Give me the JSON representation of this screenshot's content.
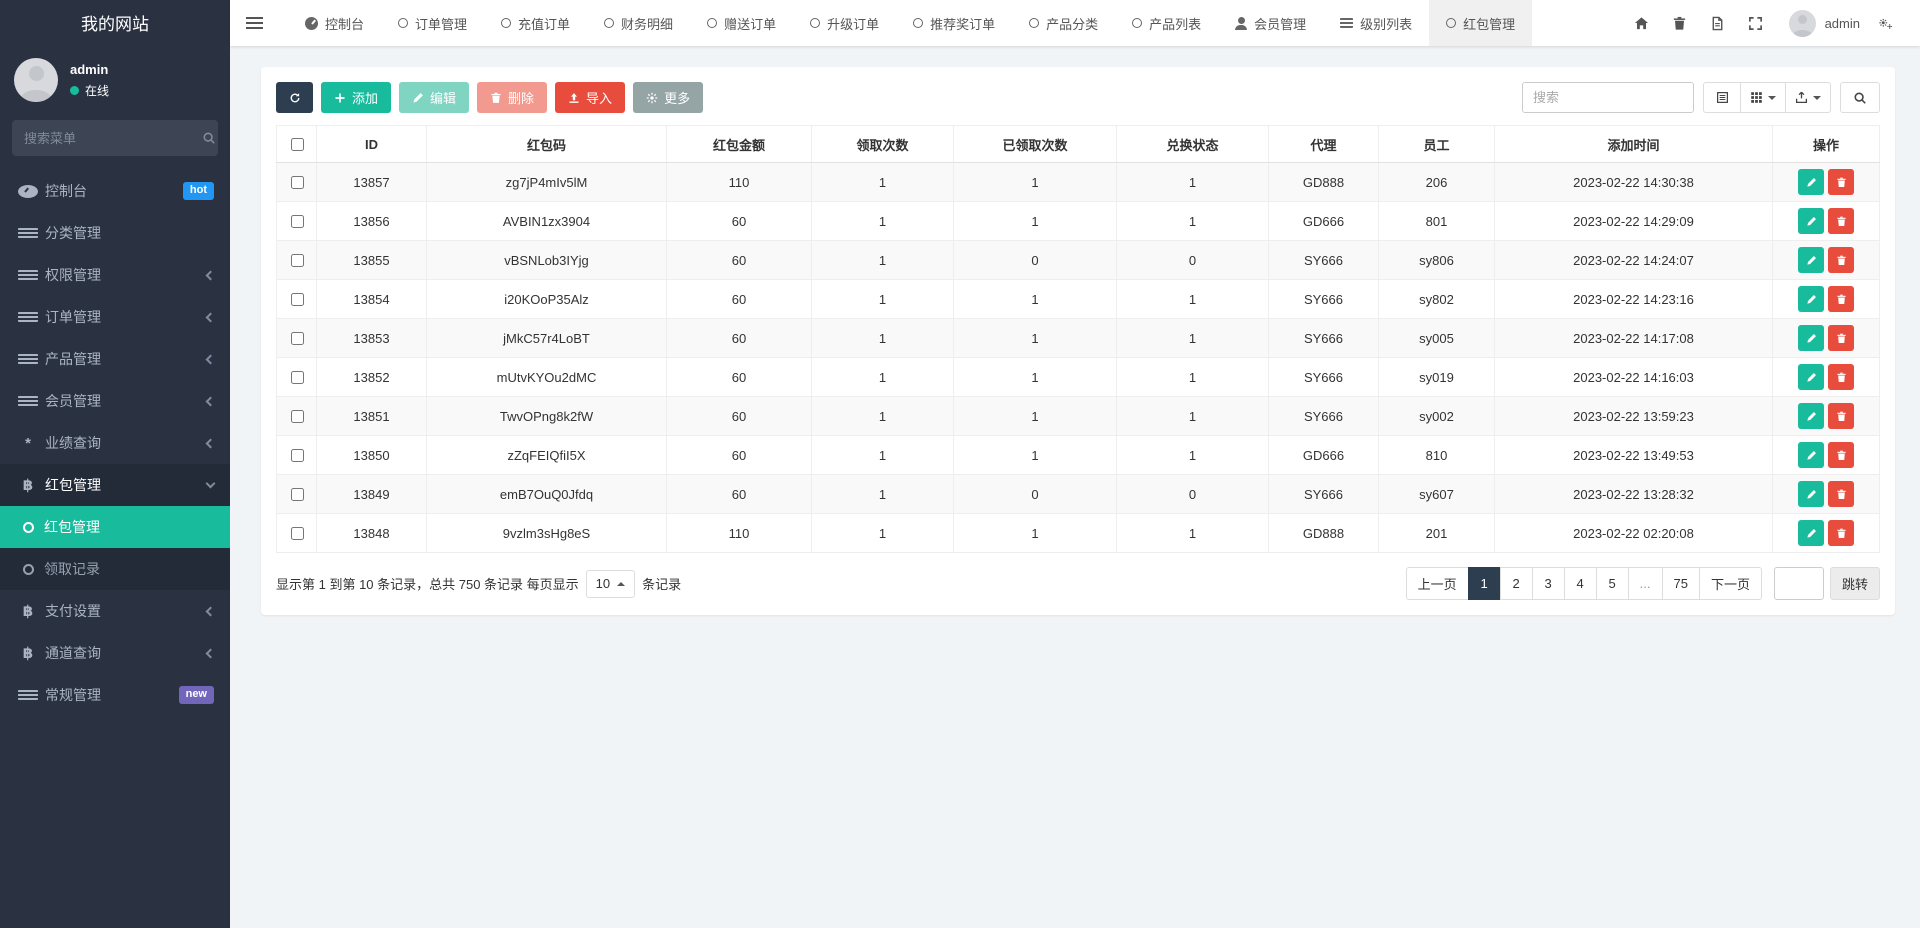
{
  "colors": {
    "accent_teal": "#18bc9c",
    "dark_navy": "#2c3e50",
    "danger_red": "#e74c3c",
    "sidebar_bg": "#2a3242",
    "sidebar_sub_bg": "#232a38",
    "hot_badge": "#2196f3",
    "new_badge": "#7266ba",
    "default_btn_gray": "#95a5a6"
  },
  "icons": {
    "gauge": "css-speedometer",
    "list": "css-bars",
    "circle": "css-ring",
    "user": "css-person",
    "bitcoin": "฿",
    "asterisk": "*",
    "search": "svg-magnifier",
    "refresh": "svg-circular-arrow",
    "plus": "svg-plus",
    "pencil": "svg-pencil",
    "trash": "svg-trash",
    "upload": "svg-arrow-up-tray",
    "gear": "svg-gear",
    "gears": "svg-double-gear",
    "home": "svg-house",
    "file": "svg-document",
    "expand": "svg-fullscreen-arrows",
    "detail": "svg-detail-view",
    "grid": "svg-grid-3x3",
    "export": "svg-export-box"
  },
  "sidebar": {
    "title": "我的网站",
    "user": {
      "name": "admin",
      "status": "在线"
    },
    "search_placeholder": "搜索菜单",
    "items": [
      {
        "label": "控制台",
        "icon": "gauge",
        "badge": "hot",
        "badge_color": "#2196f3"
      },
      {
        "label": "分类管理",
        "icon": "list"
      },
      {
        "label": "权限管理",
        "icon": "list",
        "chevron": "left"
      },
      {
        "label": "订单管理",
        "icon": "list",
        "chevron": "left"
      },
      {
        "label": "产品管理",
        "icon": "list",
        "chevron": "left"
      },
      {
        "label": "会员管理",
        "icon": "list",
        "chevron": "left"
      },
      {
        "label": "业绩查询",
        "icon": "asterisk",
        "chevron": "left"
      },
      {
        "label": "红包管理",
        "icon": "bitcoin",
        "chevron": "down",
        "expanded": true,
        "children": [
          {
            "label": "红包管理",
            "active": true
          },
          {
            "label": "领取记录"
          }
        ]
      },
      {
        "label": "支付设置",
        "icon": "bitcoin",
        "chevron": "left"
      },
      {
        "label": "通道查询",
        "icon": "bitcoin",
        "chevron": "left"
      },
      {
        "label": "常规管理",
        "icon": "list",
        "badge": "new",
        "badge_color": "#7266ba"
      }
    ]
  },
  "topbar": {
    "user": "admin",
    "tabs": [
      {
        "label": "控制台",
        "icon": "gauge"
      },
      {
        "label": "订单管理",
        "icon": "circle"
      },
      {
        "label": "充值订单",
        "icon": "circle"
      },
      {
        "label": "财务明细",
        "icon": "circle"
      },
      {
        "label": "赠送订单",
        "icon": "circle"
      },
      {
        "label": "升级订单",
        "icon": "circle"
      },
      {
        "label": "推荐奖订单",
        "icon": "circle"
      },
      {
        "label": "产品分类",
        "icon": "circle"
      },
      {
        "label": "产品列表",
        "icon": "circle"
      },
      {
        "label": "会员管理",
        "icon": "user"
      },
      {
        "label": "级别列表",
        "icon": "list"
      },
      {
        "label": "红包管理",
        "icon": "circle",
        "active": true
      }
    ]
  },
  "toolbar": {
    "add": "添加",
    "edit": "编辑",
    "delete": "删除",
    "import": "导入",
    "more": "更多",
    "search_placeholder": "搜索"
  },
  "table": {
    "columns": [
      "ID",
      "红包码",
      "红包金额",
      "领取次数",
      "已领取次数",
      "兑换状态",
      "代理",
      "员工",
      "添加时间",
      "操作"
    ],
    "rows": [
      [
        "13857",
        "zg7jP4mIv5lM",
        "110",
        "1",
        "1",
        "1",
        "GD888",
        "206",
        "2023-02-22 14:30:38"
      ],
      [
        "13856",
        "AVBIN1zx3904",
        "60",
        "1",
        "1",
        "1",
        "GD666",
        "801",
        "2023-02-22 14:29:09"
      ],
      [
        "13855",
        "vBSNLob3IYjg",
        "60",
        "1",
        "0",
        "0",
        "SY666",
        "sy806",
        "2023-02-22 14:24:07"
      ],
      [
        "13854",
        "i20KOoP35Alz",
        "60",
        "1",
        "1",
        "1",
        "SY666",
        "sy802",
        "2023-02-22 14:23:16"
      ],
      [
        "13853",
        "jMkC57r4LoBT",
        "60",
        "1",
        "1",
        "1",
        "SY666",
        "sy005",
        "2023-02-22 14:17:08"
      ],
      [
        "13852",
        "mUtvKYOu2dMC",
        "60",
        "1",
        "1",
        "1",
        "SY666",
        "sy019",
        "2023-02-22 14:16:03"
      ],
      [
        "13851",
        "TwvOPng8k2fW",
        "60",
        "1",
        "1",
        "1",
        "SY666",
        "sy002",
        "2023-02-22 13:59:23"
      ],
      [
        "13850",
        "zZqFEIQfiI5X",
        "60",
        "1",
        "1",
        "1",
        "GD666",
        "810",
        "2023-02-22 13:49:53"
      ],
      [
        "13849",
        "emB7OuQ0Jfdq",
        "60",
        "1",
        "0",
        "0",
        "SY666",
        "sy607",
        "2023-02-22 13:28:32"
      ],
      [
        "13848",
        "9vzlm3sHg8eS",
        "110",
        "1",
        "1",
        "1",
        "GD888",
        "201",
        "2023-02-22 02:20:08"
      ]
    ]
  },
  "pagination": {
    "info": "显示第 1 到第 10 条记录，总共 750 条记录 每页显示",
    "page_size": "10",
    "info_suffix": "条记录",
    "prev": "上一页",
    "next": "下一页",
    "pages": [
      "1",
      "2",
      "3",
      "4",
      "5",
      "...",
      "75"
    ],
    "active_page": "1",
    "jump": "跳转"
  }
}
